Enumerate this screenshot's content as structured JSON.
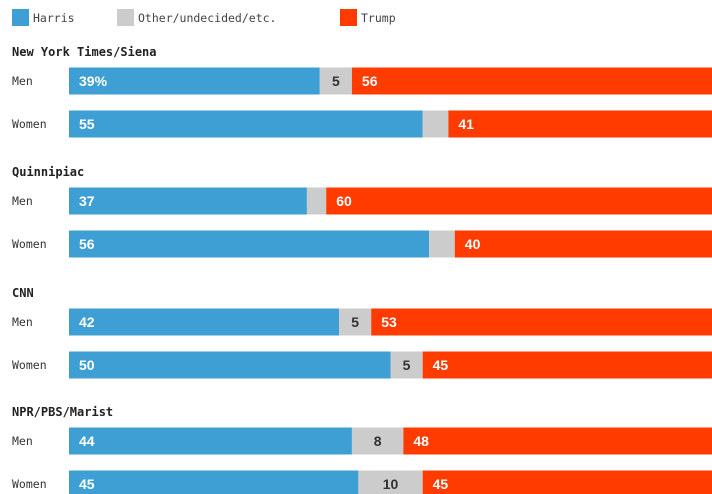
{
  "chart_data": {
    "type": "bar",
    "orientation": "horizontal",
    "stacked": true,
    "legend": [
      {
        "key": "harris",
        "label": "Harris",
        "color": "#3d9fd3"
      },
      {
        "key": "other",
        "label": "Other/undecided/etc.",
        "color": "#cccccc"
      },
      {
        "key": "trump",
        "label": "Trump",
        "color": "#ff3b00"
      }
    ],
    "legend_position": "top-left",
    "groups": [
      {
        "poll": "New York Times/Siena",
        "rows": [
          {
            "label": "Men",
            "harris": 39,
            "other": 5,
            "trump": 56,
            "harris_text": "39%",
            "other_text": "5",
            "trump_text": "56"
          },
          {
            "label": "Women",
            "harris": 55,
            "other": 4,
            "trump": 41,
            "harris_text": "55",
            "other_text": "",
            "trump_text": "41"
          }
        ]
      },
      {
        "poll": "Quinnipiac",
        "rows": [
          {
            "label": "Men",
            "harris": 37,
            "other": 3,
            "trump": 60,
            "harris_text": "37",
            "other_text": "",
            "trump_text": "60"
          },
          {
            "label": "Women",
            "harris": 56,
            "other": 4,
            "trump": 40,
            "harris_text": "56",
            "other_text": "",
            "trump_text": "40"
          }
        ]
      },
      {
        "poll": "CNN",
        "rows": [
          {
            "label": "Men",
            "harris": 42,
            "other": 5,
            "trump": 53,
            "harris_text": "42",
            "other_text": "5",
            "trump_text": "53"
          },
          {
            "label": "Women",
            "harris": 50,
            "other": 5,
            "trump": 45,
            "harris_text": "50",
            "other_text": "5",
            "trump_text": "45"
          }
        ]
      },
      {
        "poll": "NPR/PBS/Marist",
        "rows": [
          {
            "label": "Men",
            "harris": 44,
            "other": 8,
            "trump": 48,
            "harris_text": "44",
            "other_text": "8",
            "trump_text": "48"
          },
          {
            "label": "Women",
            "harris": 45,
            "other": 10,
            "trump": 45,
            "harris_text": "45",
            "other_text": "10",
            "trump_text": "45"
          }
        ]
      }
    ]
  }
}
